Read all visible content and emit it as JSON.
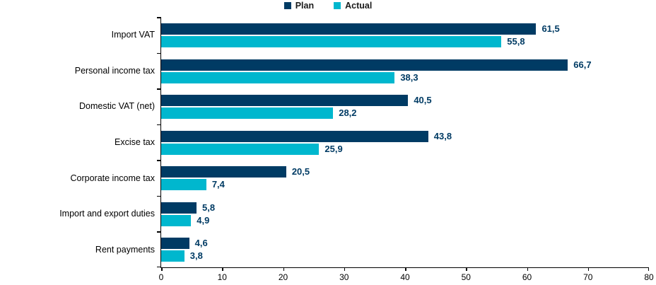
{
  "legend": {
    "items": [
      {
        "label": "Plan",
        "color": "#003b64"
      },
      {
        "label": "Actual",
        "color": "#00b7ce"
      }
    ]
  },
  "chart_data": {
    "type": "bar",
    "orientation": "horizontal",
    "title": "",
    "xlabel": "",
    "ylabel": "",
    "categories": [
      "Import VAT",
      "Personal income tax",
      "Domestic VAT (net)",
      "Excise tax",
      "Corporate income tax",
      "Import and export duties",
      "Rent payments"
    ],
    "series": [
      {
        "name": "Plan",
        "color": "#003b64",
        "values": [
          61.5,
          66.7,
          40.5,
          43.8,
          20.5,
          5.8,
          4.6
        ],
        "labels": [
          "61,5",
          "66,7",
          "40,5",
          "43,8",
          "20,5",
          "5,8",
          "4,6"
        ]
      },
      {
        "name": "Actual",
        "color": "#00b7ce",
        "values": [
          55.8,
          38.3,
          28.2,
          25.9,
          7.4,
          4.9,
          3.8
        ],
        "labels": [
          "55,8",
          "38,3",
          "28,2",
          "25,9",
          "7,4",
          "4,9",
          "3,8"
        ]
      }
    ],
    "xlim": [
      0,
      80
    ],
    "xticks": [
      "0",
      "10",
      "20",
      "30",
      "40",
      "50",
      "60",
      "70",
      "80"
    ],
    "grid": false,
    "legend_position": "top-center",
    "value_label_color": "#003b64",
    "axis_color": "#000000",
    "decimal_separator": ","
  }
}
